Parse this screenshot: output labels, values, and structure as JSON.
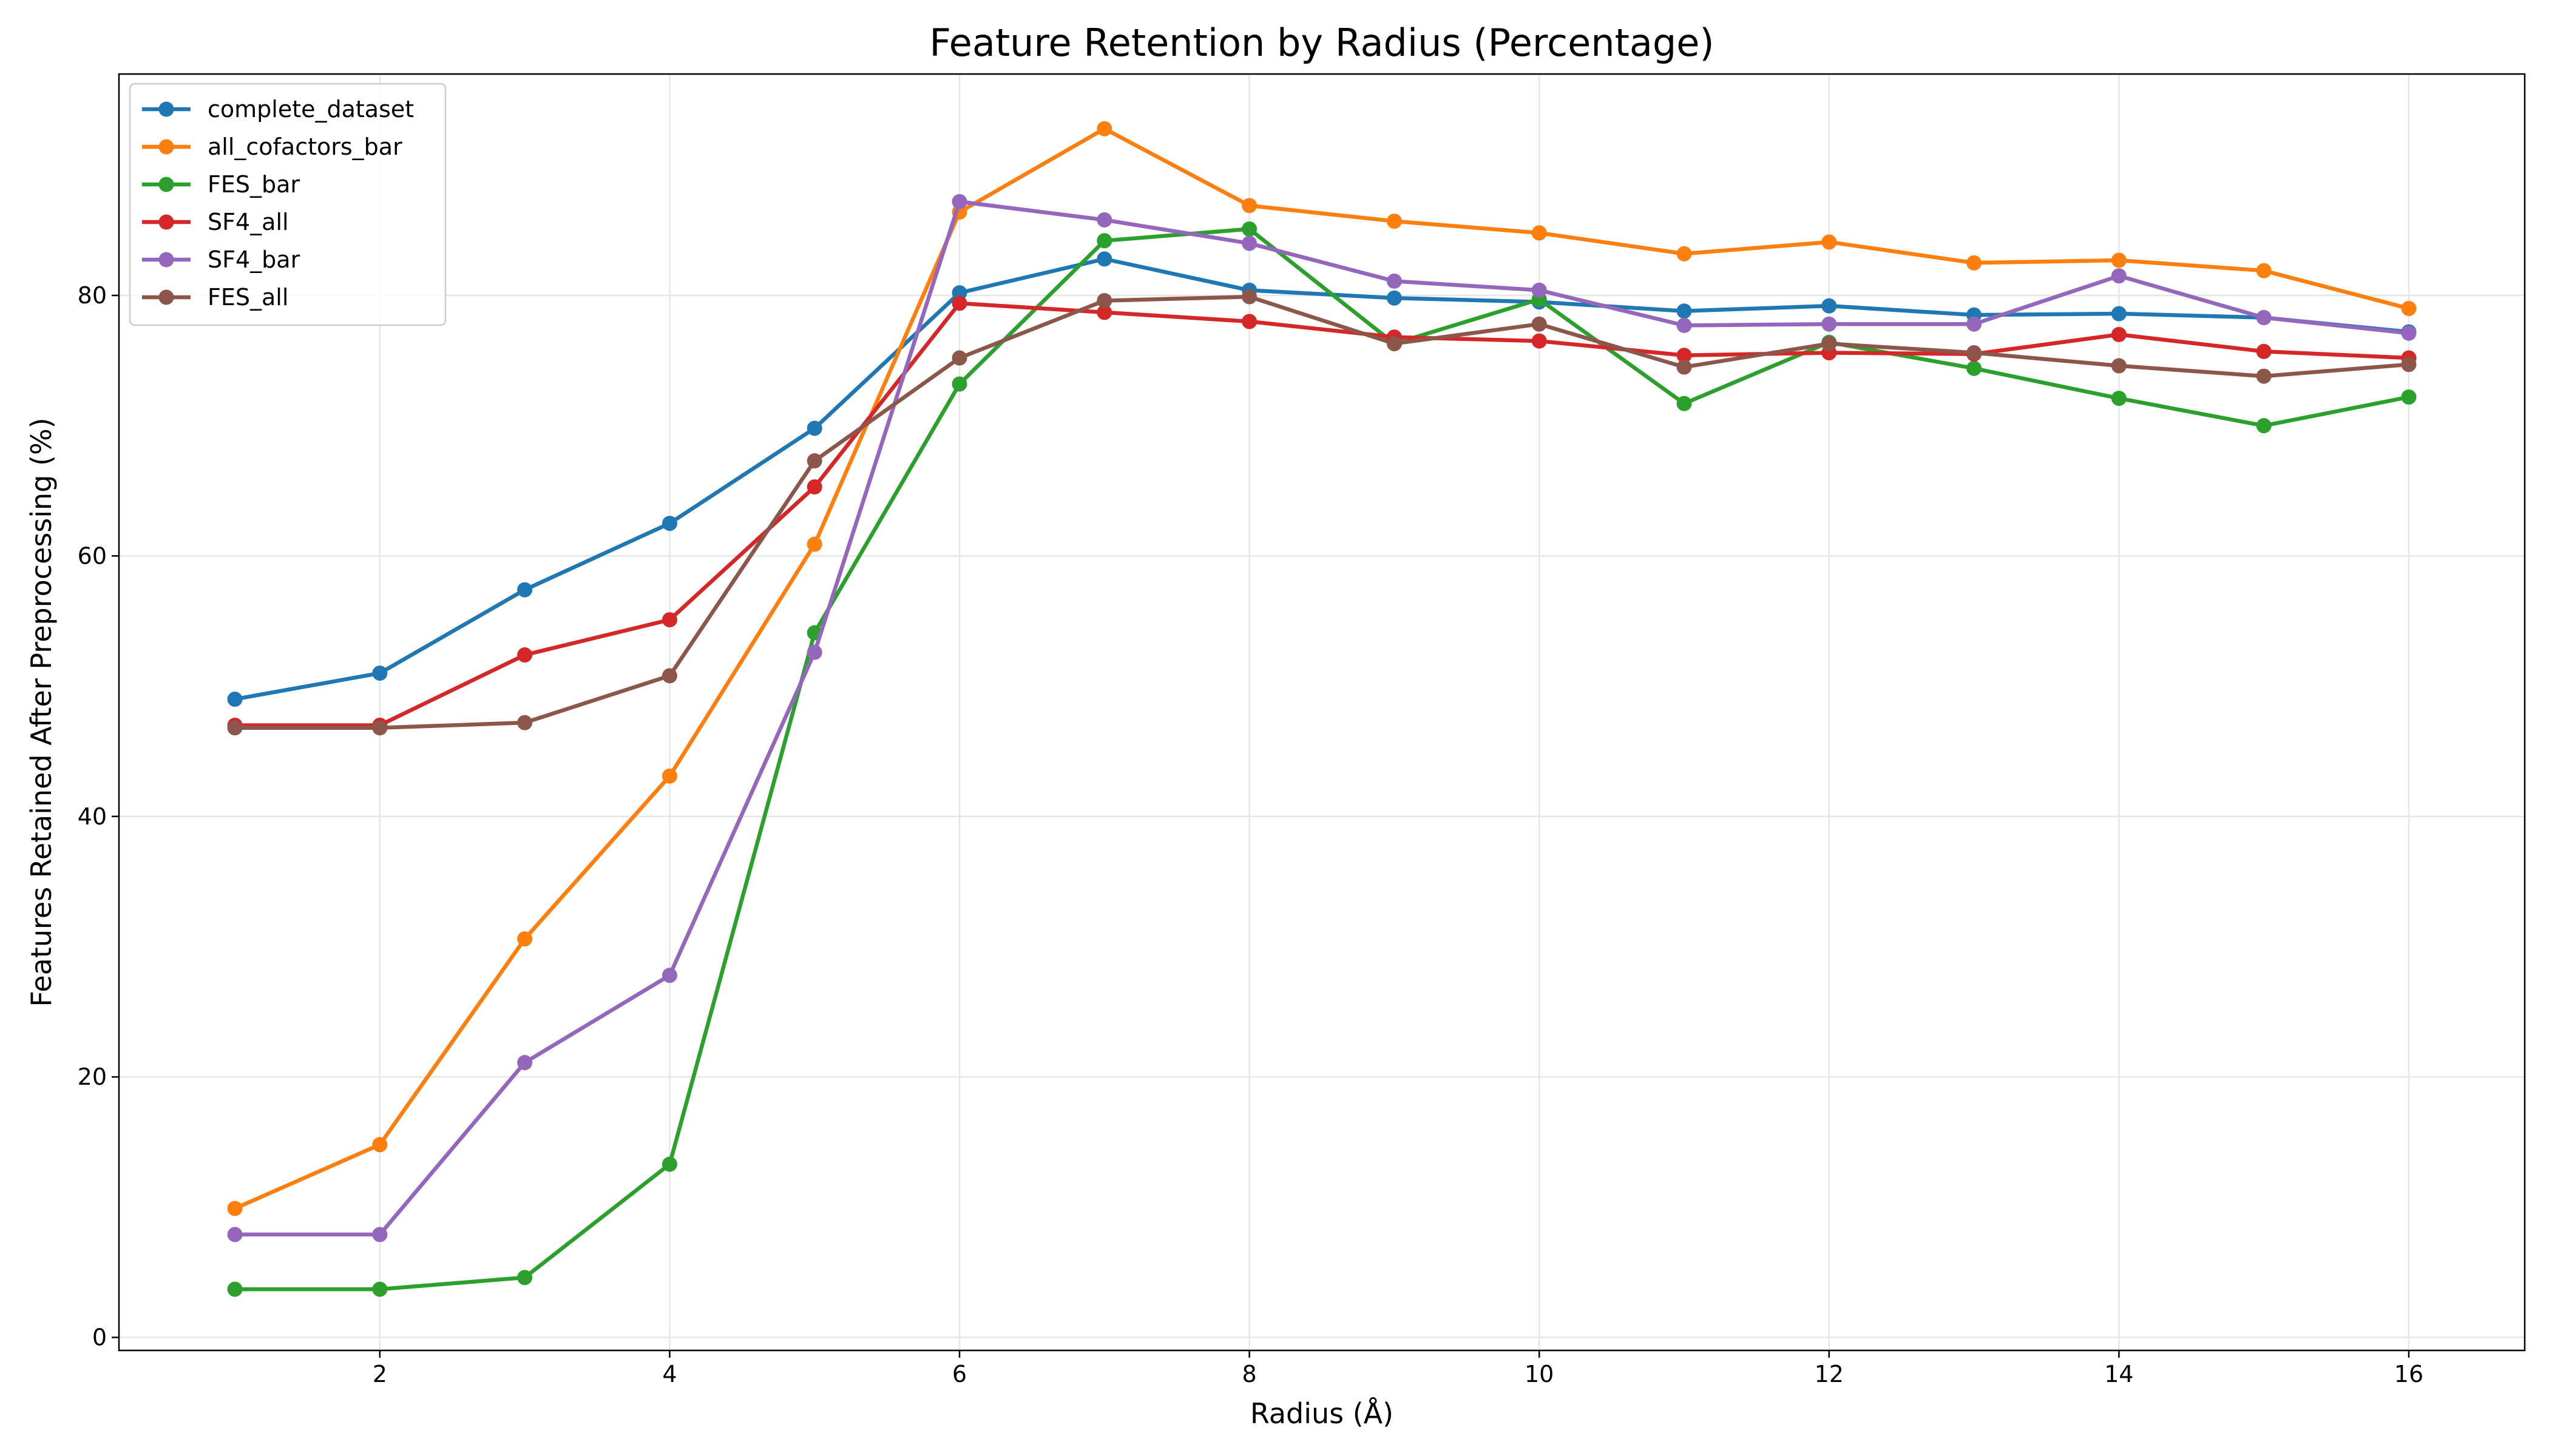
{
  "chart_data": {
    "type": "line",
    "title": "Feature Retention by Radius (Percentage)",
    "xlabel": "Radius (Å)",
    "ylabel": "Features Retained After Preprocessing (%)",
    "xlim": [
      0.2,
      16.8
    ],
    "ylim": [
      -1,
      97
    ],
    "xticks": [
      2,
      4,
      6,
      8,
      10,
      12,
      14,
      16
    ],
    "yticks": [
      0,
      20,
      40,
      60,
      80
    ],
    "grid": true,
    "legend_position": "top-left",
    "x": [
      1,
      2,
      3,
      4,
      5,
      6,
      7,
      8,
      9,
      10,
      11,
      12,
      13,
      14,
      15,
      16
    ],
    "series": [
      {
        "name": "complete_dataset",
        "color": "#1f77b4",
        "values": [
          49.0,
          51.0,
          57.4,
          62.5,
          69.8,
          80.2,
          82.8,
          80.4,
          79.8,
          79.5,
          78.8,
          79.2,
          78.5,
          78.6,
          78.3,
          77.2
        ]
      },
      {
        "name": "all_cofactors_bar",
        "color": "#ff7f0e",
        "values": [
          9.9,
          14.8,
          30.6,
          43.1,
          60.9,
          86.4,
          92.8,
          86.9,
          85.7,
          84.8,
          83.2,
          84.1,
          82.5,
          82.7,
          81.9,
          79.0
        ]
      },
      {
        "name": "FES_bar",
        "color": "#2ca02c",
        "values": [
          3.7,
          3.7,
          4.6,
          13.3,
          54.1,
          73.2,
          84.2,
          85.1,
          76.3,
          79.7,
          71.7,
          76.4,
          74.4,
          72.1,
          70.0,
          72.2
        ]
      },
      {
        "name": "SF4_all",
        "color": "#d62728",
        "values": [
          47.0,
          47.0,
          52.4,
          55.1,
          65.3,
          79.4,
          78.7,
          78.0,
          76.8,
          76.5,
          75.4,
          75.6,
          75.5,
          77.0,
          75.7,
          75.2
        ]
      },
      {
        "name": "SF4_bar",
        "color": "#9467bd",
        "values": [
          7.9,
          7.9,
          21.1,
          27.8,
          52.6,
          87.2,
          85.8,
          84.0,
          81.1,
          80.4,
          77.7,
          77.8,
          77.8,
          81.5,
          78.3,
          77.1
        ]
      },
      {
        "name": "FES_all",
        "color": "#8c564b",
        "values": [
          46.8,
          46.8,
          47.2,
          50.8,
          67.3,
          75.2,
          79.6,
          79.9,
          76.3,
          77.8,
          74.5,
          76.3,
          75.6,
          74.6,
          73.8,
          74.7
        ]
      }
    ]
  }
}
